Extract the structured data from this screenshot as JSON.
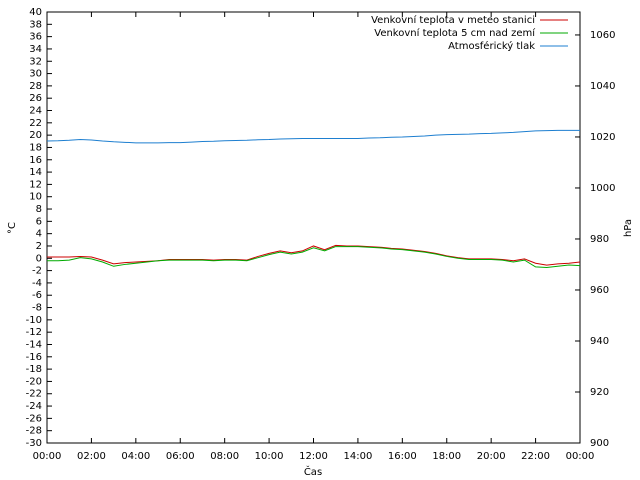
{
  "chart_data": {
    "type": "line",
    "x_label": "Čas",
    "y_label": "°C",
    "y2_label": "hPa",
    "xlim": [
      0,
      24
    ],
    "xticks": [
      {
        "value": 0,
        "label": "00:00"
      },
      {
        "value": 2,
        "label": "02:00"
      },
      {
        "value": 4,
        "label": "04:00"
      },
      {
        "value": 6,
        "label": "06:00"
      },
      {
        "value": 8,
        "label": "08:00"
      },
      {
        "value": 10,
        "label": "10:00"
      },
      {
        "value": 12,
        "label": "12:00"
      },
      {
        "value": 14,
        "label": "14:00"
      },
      {
        "value": 16,
        "label": "16:00"
      },
      {
        "value": 18,
        "label": "18:00"
      },
      {
        "value": 20,
        "label": "20:00"
      },
      {
        "value": 22,
        "label": "22:00"
      },
      {
        "value": 24,
        "label": "00:00"
      }
    ],
    "ylim": [
      -30,
      40
    ],
    "yticks": [
      -30,
      -28,
      -26,
      -24,
      -22,
      -20,
      -18,
      -16,
      -14,
      -12,
      -10,
      -8,
      -6,
      -4,
      -2,
      0,
      2,
      4,
      6,
      8,
      10,
      12,
      14,
      16,
      18,
      20,
      22,
      24,
      26,
      28,
      30,
      32,
      34,
      36,
      38,
      40
    ],
    "y2lim": [
      900,
      1069
    ],
    "y2ticks": [
      900,
      920,
      940,
      960,
      980,
      1000,
      1020,
      1040,
      1060
    ],
    "x": [
      0,
      0.5,
      1,
      1.5,
      2,
      2.5,
      3,
      3.5,
      4,
      4.5,
      5,
      5.5,
      6,
      6.5,
      7,
      7.5,
      8,
      8.5,
      9,
      9.5,
      10,
      10.5,
      11,
      11.5,
      12,
      12.5,
      13,
      13.5,
      14,
      14.5,
      15,
      15.5,
      16,
      16.5,
      17,
      17.5,
      18,
      18.5,
      19,
      19.5,
      20,
      20.5,
      21,
      21.5,
      22,
      22.5,
      23,
      23.5,
      24
    ],
    "legend": "top-right",
    "series": [
      {
        "name": "Venkovní teplota v meteo stanici",
        "color": "#cc0000",
        "values": [
          0.2,
          0.2,
          0.2,
          0.3,
          0.2,
          -0.3,
          -0.9,
          -0.7,
          -0.6,
          -0.5,
          -0.4,
          -0.2,
          -0.2,
          -0.2,
          -0.2,
          -0.3,
          -0.2,
          -0.2,
          -0.3,
          0.3,
          0.8,
          1.2,
          0.9,
          1.2,
          2,
          1.4,
          2.1,
          2,
          2,
          1.9,
          1.8,
          1.6,
          1.5,
          1.3,
          1.1,
          0.8,
          0.4,
          0.1,
          -0.1,
          -0.1,
          -0.1,
          -0.2,
          -0.4,
          -0.1,
          -0.8,
          -1.1,
          -0.9,
          -0.8,
          -0.6
        ]
      },
      {
        "name": "Venkovní teplota 5 cm nad zemí",
        "color": "#00aa00",
        "values": [
          -0.4,
          -0.4,
          -0.3,
          0.1,
          -0.1,
          -0.6,
          -1.3,
          -1,
          -0.8,
          -0.6,
          -0.4,
          -0.3,
          -0.3,
          -0.3,
          -0.3,
          -0.4,
          -0.3,
          -0.3,
          -0.4,
          0.1,
          0.6,
          1,
          0.7,
          1,
          1.7,
          1.2,
          1.9,
          1.9,
          1.9,
          1.8,
          1.7,
          1.5,
          1.4,
          1.2,
          1,
          0.7,
          0.3,
          0,
          -0.2,
          -0.2,
          -0.2,
          -0.3,
          -0.6,
          -0.3,
          -1.4,
          -1.5,
          -1.3,
          -1.1,
          -1.2
        ]
      },
      {
        "name": "Atmosférický tlak",
        "color": "#1e7fd0",
        "axis": "y2",
        "values": [
          1018.4,
          1018.5,
          1018.7,
          1019,
          1018.8,
          1018.4,
          1018.1,
          1017.9,
          1017.7,
          1017.7,
          1017.7,
          1017.8,
          1017.8,
          1018,
          1018.2,
          1018.3,
          1018.5,
          1018.6,
          1018.7,
          1018.9,
          1019,
          1019.2,
          1019.3,
          1019.4,
          1019.4,
          1019.4,
          1019.4,
          1019.4,
          1019.4,
          1019.6,
          1019.7,
          1019.9,
          1020,
          1020.2,
          1020.4,
          1020.7,
          1020.9,
          1021,
          1021.1,
          1021.3,
          1021.4,
          1021.6,
          1021.8,
          1022.1,
          1022.4,
          1022.5,
          1022.6,
          1022.6,
          1022.6
        ]
      }
    ]
  }
}
